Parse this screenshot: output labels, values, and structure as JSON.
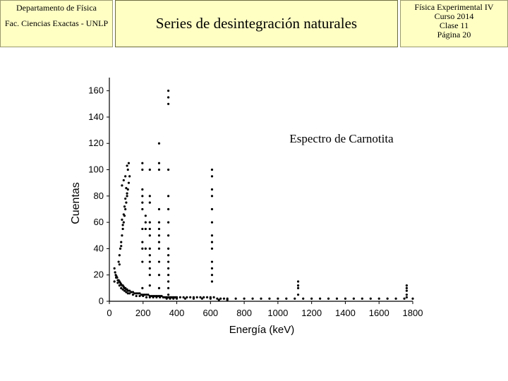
{
  "header": {
    "left_line1": "Departamento de Física",
    "left_line2": "Fac. Ciencias Exactas - UNLP",
    "title": "Series de desintegración naturales",
    "right_lines": [
      "Física Experimental IV",
      "Curso 2014",
      "Clase 11",
      "Página 20"
    ]
  },
  "chart_data": {
    "type": "scatter",
    "title": "Espectro de Carnotita",
    "xlabel": "Energía (keV)",
    "ylabel": "Cuentas",
    "xlim": [
      0,
      1800
    ],
    "ylim": [
      0,
      170
    ],
    "xticks": [
      0,
      200,
      400,
      600,
      800,
      1000,
      1200,
      1400,
      1600,
      1800
    ],
    "yticks": [
      0,
      20,
      40,
      60,
      80,
      100,
      120,
      140,
      160
    ],
    "grid": false,
    "series": [
      {
        "x": [
          30,
          34,
          38,
          42,
          46,
          50,
          55,
          60,
          65,
          70,
          75,
          80,
          85,
          90,
          95,
          100,
          105,
          110,
          120,
          130,
          140,
          150,
          160,
          170,
          180,
          190,
          200,
          210,
          220,
          230,
          240,
          250,
          260,
          270,
          280,
          290,
          300,
          310,
          320,
          330,
          340,
          350,
          360,
          370,
          380,
          390,
          400,
          420,
          440,
          460,
          480,
          500,
          520,
          540,
          560,
          580,
          600,
          620,
          640,
          660,
          680,
          700,
          750,
          800,
          850,
          900,
          950,
          1000,
          1050,
          1100,
          1150,
          1200,
          1250,
          1300,
          1350,
          1400,
          1450,
          1500,
          1550,
          1600,
          1650,
          1700,
          1750,
          1800,
          30,
          40,
          50,
          60,
          70,
          80,
          90,
          100,
          110,
          120,
          140,
          160,
          180,
          200,
          220,
          240,
          260,
          280,
          300,
          320,
          340,
          360,
          380,
          400,
          450,
          500,
          550,
          600,
          650,
          700,
          55,
          60,
          65,
          70,
          75,
          80,
          85,
          90,
          95,
          100,
          105,
          110,
          115,
          120,
          60,
          70,
          80,
          90,
          100,
          110,
          75,
          85,
          95,
          105,
          75,
          85,
          95,
          105,
          115,
          196,
          196,
          196,
          196,
          196,
          196,
          196,
          196,
          196,
          196,
          196,
          215,
          215,
          215,
          215,
          240,
          240,
          240,
          240,
          240,
          240,
          240,
          240,
          240,
          240,
          240,
          240,
          295,
          295,
          295,
          295,
          295,
          295,
          295,
          295,
          295,
          295,
          295,
          295,
          350,
          350,
          350,
          350,
          350,
          350,
          350,
          350,
          350,
          350,
          350,
          350,
          350,
          350,
          350,
          350,
          609,
          609,
          609,
          609,
          609,
          609,
          609,
          609,
          609,
          609,
          609,
          609,
          609,
          1120,
          1120,
          1120,
          1120,
          1764,
          1764,
          1764,
          1764,
          1764
        ],
        "y": [
          25,
          22,
          20,
          19,
          18,
          16,
          16,
          15,
          14,
          13,
          12,
          12,
          11,
          10,
          10,
          9,
          9,
          8,
          8,
          7,
          7,
          6,
          6,
          6,
          6,
          5,
          5,
          5,
          5,
          5,
          4,
          4,
          4,
          4,
          4,
          4,
          4,
          4,
          3,
          3,
          3,
          3,
          3,
          3,
          3,
          3,
          3,
          3,
          3,
          3,
          3,
          3,
          3,
          3,
          3,
          3,
          3,
          3,
          2,
          2,
          2,
          2,
          2,
          2,
          2,
          2,
          2,
          2,
          2,
          2,
          2,
          2,
          2,
          2,
          2,
          2,
          2,
          2,
          2,
          2,
          2,
          2,
          2,
          2,
          15,
          18,
          14,
          12,
          10,
          9,
          8,
          7,
          6,
          6,
          5,
          4,
          4,
          4,
          3,
          3,
          3,
          3,
          3,
          3,
          2,
          2,
          2,
          2,
          2,
          2,
          2,
          2,
          1,
          1,
          30,
          35,
          40,
          45,
          50,
          55,
          60,
          65,
          70,
          75,
          80,
          85,
          90,
          95,
          28,
          42,
          58,
          72,
          86,
          100,
          88,
          92,
          95,
          103,
          62,
          66,
          78,
          82,
          105,
          10,
          30,
          40,
          45,
          55,
          70,
          75,
          80,
          85,
          100,
          105,
          40,
          55,
          60,
          65,
          12,
          20,
          25,
          30,
          35,
          40,
          50,
          55,
          60,
          75,
          80,
          100,
          10,
          20,
          30,
          40,
          45,
          50,
          55,
          60,
          70,
          100,
          105,
          120,
          5,
          10,
          15,
          20,
          25,
          30,
          35,
          40,
          50,
          60,
          70,
          80,
          100,
          150,
          155,
          160,
          15,
          20,
          25,
          30,
          40,
          45,
          50,
          60,
          70,
          80,
          85,
          95,
          100,
          5,
          10,
          12,
          15,
          3,
          5,
          8,
          10,
          12
        ]
      }
    ]
  }
}
